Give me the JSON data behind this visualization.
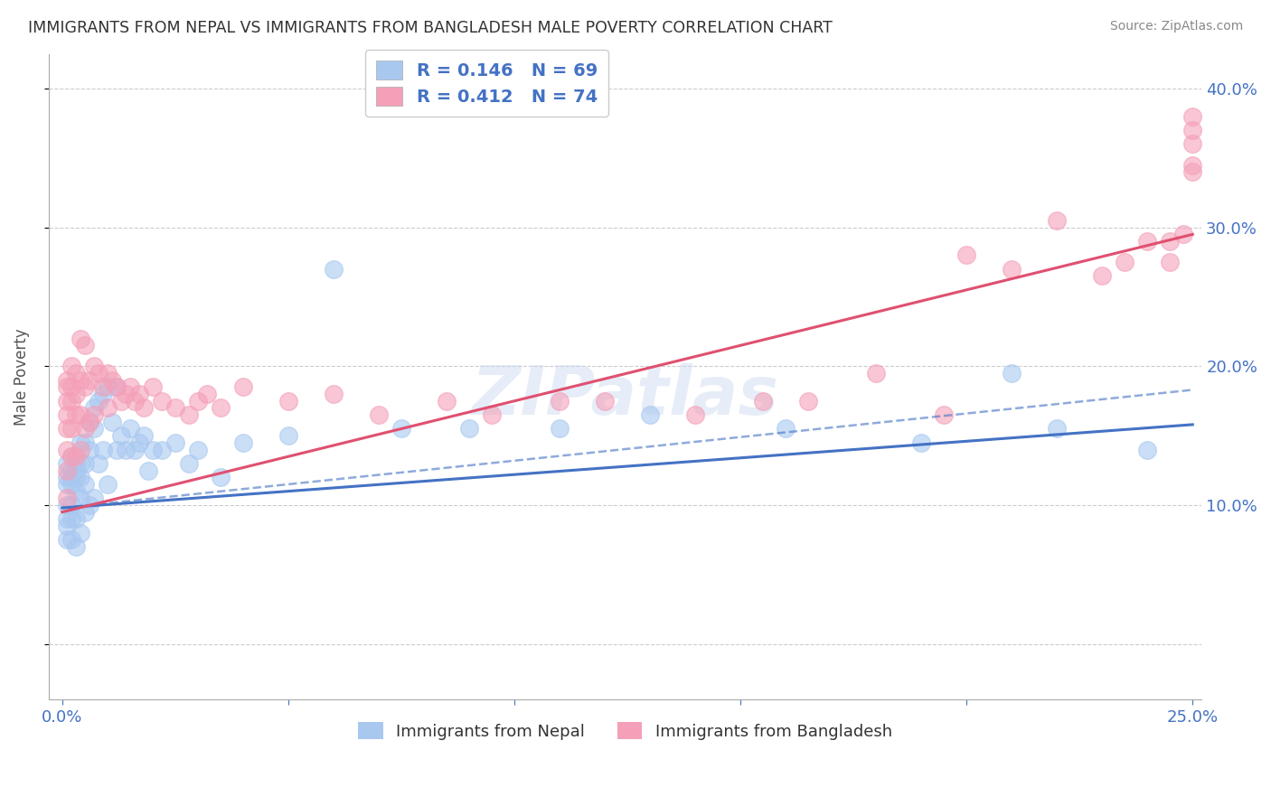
{
  "title": "IMMIGRANTS FROM NEPAL VS IMMIGRANTS FROM BANGLADESH MALE POVERTY CORRELATION CHART",
  "source": "Source: ZipAtlas.com",
  "ylabel": "Male Poverty",
  "r_nepal": 0.146,
  "n_nepal": 69,
  "r_bangladesh": 0.412,
  "n_bangladesh": 74,
  "xlim": [
    -0.003,
    0.252
  ],
  "ylim": [
    -0.04,
    0.425
  ],
  "yticks": [
    0.0,
    0.1,
    0.2,
    0.3,
    0.4
  ],
  "ytick_labels": [
    "",
    "10.0%",
    "20.0%",
    "30.0%",
    "40.0%"
  ],
  "xticks": [
    0.0,
    0.05,
    0.1,
    0.15,
    0.2,
    0.25
  ],
  "xtick_labels": [
    "0.0%",
    "",
    "",
    "",
    "",
    "25.0%"
  ],
  "nepal_color": "#a8c8f0",
  "bangladesh_color": "#f4a0b8",
  "nepal_trend_color": "#4472c4",
  "bangladesh_trend_color": "#e05070",
  "axis_color": "#4472c4",
  "watermark": "ZIPatlas",
  "nepal_trend": [
    0.0,
    0.25,
    0.098,
    0.158
  ],
  "bangladesh_trend": [
    0.0,
    0.25,
    0.095,
    0.295
  ],
  "nepal_dashed": [
    0.0,
    0.25,
    0.098,
    0.183
  ],
  "nepal_x": [
    0.001,
    0.001,
    0.001,
    0.001,
    0.001,
    0.001,
    0.001,
    0.002,
    0.002,
    0.002,
    0.002,
    0.002,
    0.002,
    0.002,
    0.003,
    0.003,
    0.003,
    0.003,
    0.003,
    0.003,
    0.004,
    0.004,
    0.004,
    0.004,
    0.004,
    0.005,
    0.005,
    0.005,
    0.005,
    0.006,
    0.006,
    0.006,
    0.007,
    0.007,
    0.007,
    0.008,
    0.008,
    0.009,
    0.009,
    0.01,
    0.01,
    0.011,
    0.012,
    0.012,
    0.013,
    0.014,
    0.015,
    0.016,
    0.017,
    0.018,
    0.019,
    0.02,
    0.022,
    0.025,
    0.028,
    0.03,
    0.035,
    0.04,
    0.05,
    0.06,
    0.075,
    0.09,
    0.11,
    0.13,
    0.16,
    0.19,
    0.21,
    0.22,
    0.24
  ],
  "nepal_y": [
    0.13,
    0.12,
    0.115,
    0.1,
    0.09,
    0.085,
    0.075,
    0.135,
    0.125,
    0.12,
    0.115,
    0.1,
    0.09,
    0.075,
    0.13,
    0.125,
    0.12,
    0.11,
    0.09,
    0.07,
    0.145,
    0.13,
    0.12,
    0.105,
    0.08,
    0.145,
    0.13,
    0.115,
    0.095,
    0.16,
    0.14,
    0.1,
    0.17,
    0.155,
    0.105,
    0.175,
    0.13,
    0.18,
    0.14,
    0.185,
    0.115,
    0.16,
    0.185,
    0.14,
    0.15,
    0.14,
    0.155,
    0.14,
    0.145,
    0.15,
    0.125,
    0.14,
    0.14,
    0.145,
    0.13,
    0.14,
    0.12,
    0.145,
    0.15,
    0.27,
    0.155,
    0.155,
    0.155,
    0.165,
    0.155,
    0.145,
    0.195,
    0.155,
    0.14
  ],
  "bangladesh_x": [
    0.001,
    0.001,
    0.001,
    0.001,
    0.001,
    0.001,
    0.001,
    0.001,
    0.002,
    0.002,
    0.002,
    0.002,
    0.002,
    0.003,
    0.003,
    0.003,
    0.003,
    0.004,
    0.004,
    0.004,
    0.004,
    0.005,
    0.005,
    0.005,
    0.006,
    0.006,
    0.007,
    0.007,
    0.008,
    0.009,
    0.01,
    0.01,
    0.011,
    0.012,
    0.013,
    0.014,
    0.015,
    0.016,
    0.017,
    0.018,
    0.02,
    0.022,
    0.025,
    0.028,
    0.03,
    0.032,
    0.035,
    0.04,
    0.05,
    0.06,
    0.07,
    0.085,
    0.095,
    0.11,
    0.12,
    0.14,
    0.155,
    0.165,
    0.18,
    0.195,
    0.2,
    0.21,
    0.22,
    0.23,
    0.235,
    0.24,
    0.245,
    0.245,
    0.248,
    0.25,
    0.25,
    0.25,
    0.25,
    0.25
  ],
  "bangladesh_y": [
    0.19,
    0.185,
    0.175,
    0.165,
    0.155,
    0.14,
    0.125,
    0.105,
    0.2,
    0.185,
    0.175,
    0.155,
    0.135,
    0.195,
    0.18,
    0.165,
    0.135,
    0.22,
    0.19,
    0.165,
    0.14,
    0.215,
    0.185,
    0.155,
    0.19,
    0.16,
    0.2,
    0.165,
    0.195,
    0.185,
    0.195,
    0.17,
    0.19,
    0.185,
    0.175,
    0.18,
    0.185,
    0.175,
    0.18,
    0.17,
    0.185,
    0.175,
    0.17,
    0.165,
    0.175,
    0.18,
    0.17,
    0.185,
    0.175,
    0.18,
    0.165,
    0.175,
    0.165,
    0.175,
    0.175,
    0.165,
    0.175,
    0.175,
    0.195,
    0.165,
    0.28,
    0.27,
    0.305,
    0.265,
    0.275,
    0.29,
    0.275,
    0.29,
    0.295,
    0.345,
    0.38,
    0.36,
    0.37,
    0.34
  ]
}
